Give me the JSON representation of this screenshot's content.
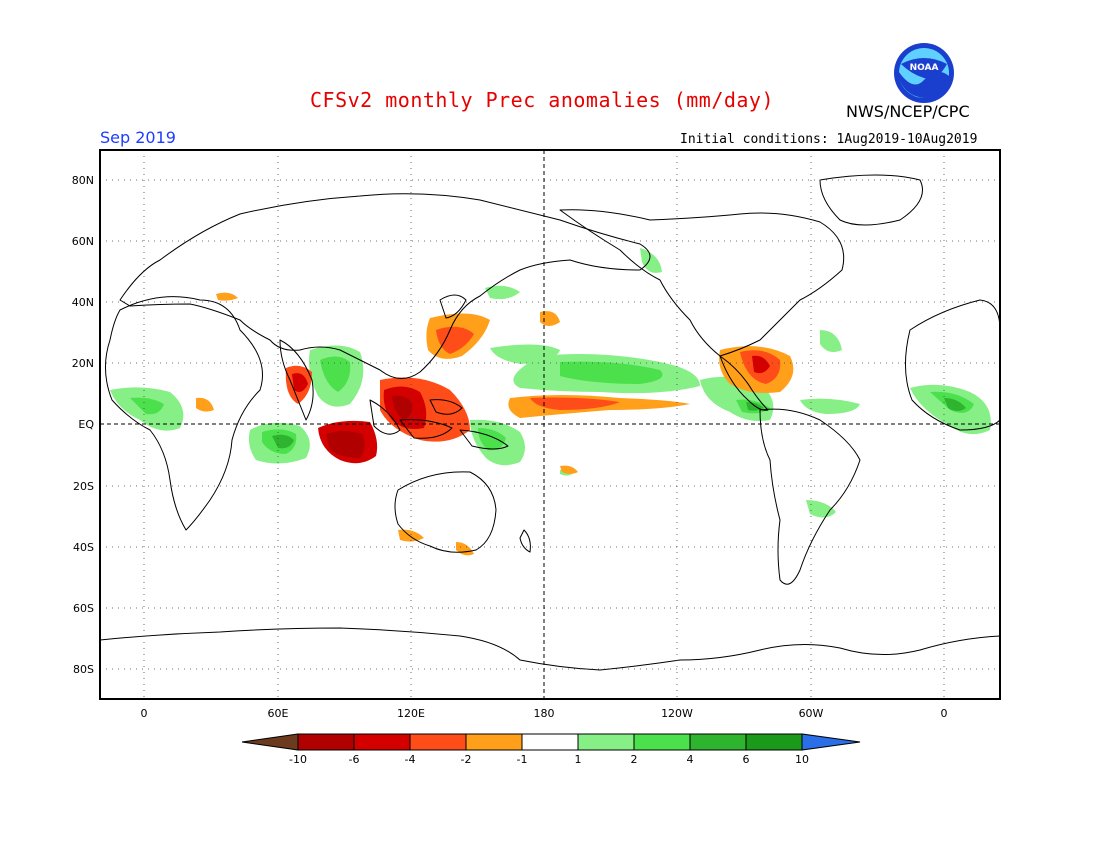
{
  "header": {
    "title": "CFSv2 monthly Prec anomalies (mm/day)",
    "month": "Sep 2019",
    "initial_conditions": "Initial conditions: 1Aug2019-10Aug2019",
    "agency": "NWS/NCEP/CPC",
    "logo_text": "NOAA"
  },
  "axes": {
    "lat_labels": [
      "80N",
      "60N",
      "40N",
      "20N",
      "EQ",
      "20S",
      "40S",
      "60S",
      "80S"
    ],
    "lon_labels": [
      "0",
      "60E",
      "120E",
      "180",
      "120W",
      "60W",
      "0"
    ]
  },
  "colorbar": {
    "labels": [
      "-10",
      "-6",
      "-4",
      "-2",
      "-1",
      "1",
      "2",
      "4",
      "6",
      "10"
    ],
    "colors": [
      "#6b3a1f",
      "#b00000",
      "#d40000",
      "#ff4d1a",
      "#ff9f1a",
      "#ffffff",
      "#86f086",
      "#4de04d",
      "#2fb42f",
      "#1a991a",
      "#2b6fe8"
    ]
  },
  "colors": {
    "title": "#e60000",
    "month": "#1e3cff",
    "dry_dark": "#b00000",
    "dry_red": "#d40000",
    "dry_orange": "#ff4d1a",
    "dry_light": "#ff9f1a",
    "wet_light": "#86f086",
    "wet_mid": "#4de04d",
    "wet_dark": "#2fb42f"
  }
}
